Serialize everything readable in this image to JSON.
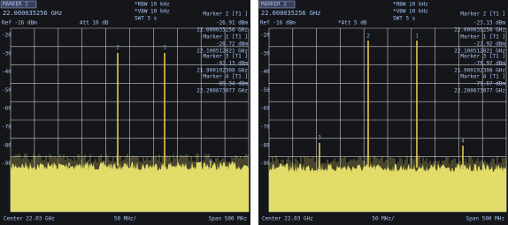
{
  "panels": [
    {
      "marker_title": "MARKER 2",
      "marker_freq": "22.000035256 GHz",
      "ref": "Ref -16 dBm",
      "att": "Att 10 dB",
      "rbw": "*RBW 10 kHz",
      "vbw": "*VBW 10 kHz",
      "swt": "SWT 5 s",
      "markers": [
        {
          "name": "Marker 2 [T1 ]",
          "level": "-26.91 dBm",
          "freq": "22.000035256 GHz",
          "tag": "2"
        },
        {
          "name": "Marker 1 [T1 ]",
          "level": "-26.72 dBm",
          "freq": "22.100512821 GHz",
          "tag": "1"
        },
        {
          "name": "Marker 3 [T1 ]",
          "level": "-92.13 dBm",
          "freq": "21.900192308 GHz",
          "tag": "3"
        },
        {
          "name": "Marker 4 [T1 ]",
          "level": "-89.34 dBm",
          "freq": "22.200673077 GHz",
          "tag": "4"
        }
      ],
      "y_labels": [
        "-20",
        "-30",
        "-40",
        "-50",
        "-60",
        "-70",
        "-80",
        "-90"
      ],
      "center": "Center 22.03 GHz",
      "scale": "50 MHz/",
      "span": "Span 500 MHz"
    },
    {
      "marker_title": "MARKER 2",
      "marker_freq": "22.000035256 GHz",
      "ref": "Ref -16 dBm",
      "att": "*Att 5 dB",
      "rbw": "*RBW 10 kHz",
      "vbw": "*VBW 10 kHz",
      "swt": "SWT 5 s",
      "markers": [
        {
          "name": "Marker 2 [T1 ]",
          "level": "-23.13 dBm",
          "freq": "22.000035256 GHz",
          "tag": "2"
        },
        {
          "name": "Marker 1 [T1 ]",
          "level": "-22.92 dBm",
          "freq": "22.100512821 GHz",
          "tag": "1"
        },
        {
          "name": "Marker 3 [T1 ]",
          "level": "-79.97 dBm",
          "freq": "21.900192308 GHz",
          "tag": "3"
        },
        {
          "name": "Marker 4 [T1 ]",
          "level": "-79.67 dBm",
          "freq": "22.200673077 GHz",
          "tag": "4"
        }
      ],
      "y_labels": [
        "-20",
        "-30",
        "-40",
        "-50",
        "-60",
        "-70",
        "-80",
        "-90"
      ],
      "center": "Center 22.03 GHz",
      "scale": "50 MHz/",
      "span": "Span 500 MHz"
    }
  ]
}
